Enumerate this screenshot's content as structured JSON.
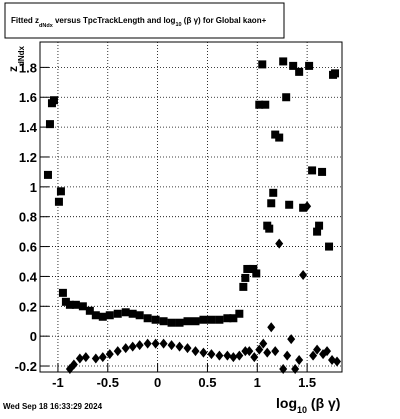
{
  "chart_data": {
    "type": "scatter",
    "title_parts": [
      "Fitted ",
      "z",
      "dNdx",
      " versus TpcTrackLength and log",
      "10",
      " (β γ) for Global kaon+"
    ],
    "y_label_parts": [
      "z",
      "dNdx"
    ],
    "x_label_parts": [
      "log",
      "10",
      " (β γ)"
    ],
    "footer": "Wed Sep 18 16:33:29 2024",
    "xlim": [
      -1.18,
      1.85
    ],
    "ylim": [
      -0.24,
      1.97
    ],
    "xticks": [
      -1,
      -0.5,
      0,
      0.5,
      1,
      1.5
    ],
    "yticks": [
      -0.2,
      0,
      0.2,
      0.4,
      0.6,
      0.8,
      1,
      1.2,
      1.4,
      1.6,
      1.8
    ],
    "grid": true,
    "series": [
      {
        "marker": "square",
        "color": "#000000",
        "x": [
          -1.1,
          -1.08,
          -1.06,
          -1.04,
          -0.99,
          -0.97,
          -0.95,
          -0.92,
          -0.88,
          -0.82,
          -0.75,
          -0.68,
          -0.62,
          -0.55,
          -0.48,
          -0.4,
          -0.32,
          -0.25,
          -0.18,
          -0.1,
          -0.02,
          0.06,
          0.14,
          0.22,
          0.3,
          0.38,
          0.46,
          0.54,
          0.62,
          0.7,
          0.76,
          0.82,
          0.86,
          0.88,
          0.9,
          0.93,
          0.96,
          0.99,
          1.02,
          1.05,
          1.08,
          1.1,
          1.12,
          1.14,
          1.16,
          1.18,
          1.22,
          1.26,
          1.29,
          1.32,
          1.36,
          1.42,
          1.46,
          1.52,
          1.55,
          1.6,
          1.62,
          1.65,
          1.72,
          1.76,
          1.78
        ],
        "values": [
          1.08,
          1.42,
          1.56,
          1.58,
          0.9,
          0.97,
          0.29,
          0.23,
          0.21,
          0.21,
          0.2,
          0.17,
          0.14,
          0.13,
          0.14,
          0.15,
          0.16,
          0.15,
          0.14,
          0.12,
          0.11,
          0.1,
          0.09,
          0.09,
          0.1,
          0.1,
          0.11,
          0.11,
          0.11,
          0.12,
          0.12,
          0.15,
          0.33,
          0.39,
          0.45,
          0.45,
          0.45,
          0.42,
          1.55,
          1.82,
          1.55,
          0.74,
          0.72,
          0.89,
          0.96,
          1.35,
          1.33,
          1.84,
          1.6,
          0.88,
          1.81,
          1.77,
          0.86,
          1.81,
          1.11,
          0.7,
          0.74,
          1.1,
          0.6,
          1.75,
          1.76
        ]
      },
      {
        "marker": "diamond",
        "color": "#000000",
        "x": [
          -0.88,
          -0.84,
          -0.78,
          -0.72,
          -0.62,
          -0.55,
          -0.48,
          -0.4,
          -0.32,
          -0.25,
          -0.18,
          -0.1,
          -0.02,
          0.06,
          0.14,
          0.22,
          0.3,
          0.38,
          0.46,
          0.54,
          0.62,
          0.7,
          0.76,
          0.82,
          0.88,
          0.92,
          0.97,
          1.02,
          1.06,
          1.1,
          1.14,
          1.18,
          1.22,
          1.26,
          1.3,
          1.34,
          1.38,
          1.42,
          1.46,
          1.5,
          1.56,
          1.6,
          1.66,
          1.7,
          1.75,
          1.8
        ],
        "values": [
          -0.22,
          -0.19,
          -0.15,
          -0.14,
          -0.15,
          -0.14,
          -0.12,
          -0.1,
          -0.08,
          -0.07,
          -0.06,
          -0.05,
          -0.05,
          -0.05,
          -0.06,
          -0.07,
          -0.08,
          -0.1,
          -0.11,
          -0.12,
          -0.13,
          -0.13,
          -0.14,
          -0.13,
          -0.1,
          -0.1,
          -0.14,
          -0.09,
          -0.05,
          -0.11,
          0.06,
          -0.1,
          0.62,
          -0.22,
          -0.13,
          -0.02,
          -0.22,
          -0.16,
          0.41,
          0.87,
          -0.13,
          -0.09,
          -0.12,
          -0.1,
          -0.16,
          -0.17
        ]
      }
    ]
  }
}
